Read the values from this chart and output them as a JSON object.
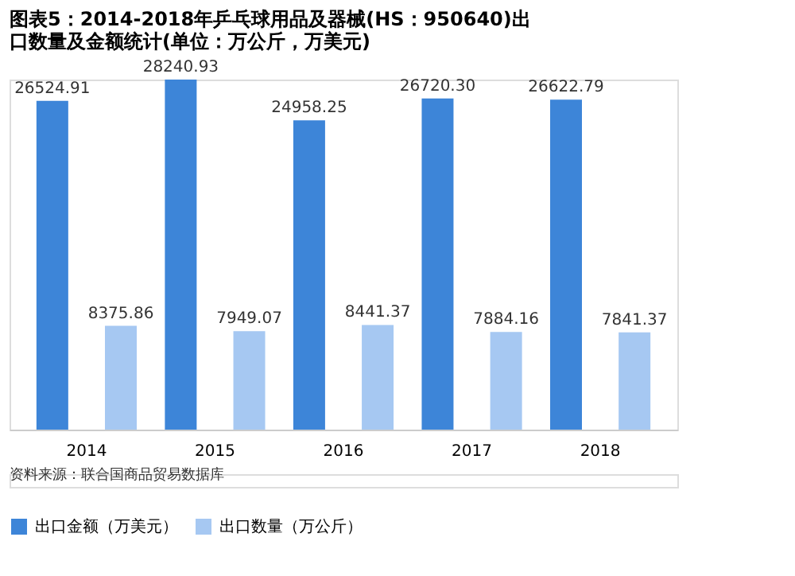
{
  "chart_data": {
    "type": "bar",
    "title": "图表5：2014-2018年乒乓球用品及器械(HS：950640)出口数量及金额统计(单位：万公斤，万美元)",
    "categories": [
      "2014",
      "2015",
      "2016",
      "2017",
      "2018"
    ],
    "series": [
      {
        "name": "出口金额（万美元）",
        "color": "#3d85d8",
        "values": [
          26524.91,
          28240.93,
          24958.25,
          26720.3,
          26622.79
        ],
        "value_labels": [
          "26524.91",
          "28240.93",
          "24958.25",
          "26720.30",
          "26622.79"
        ]
      },
      {
        "name": "出口数量（万公斤）",
        "color": "#a6c8f2",
        "values": [
          8375.86,
          7949.07,
          8441.37,
          7884.16,
          7841.37
        ],
        "value_labels": [
          "8375.86",
          "7949.07",
          "8441.37",
          "7884.16",
          "7841.37"
        ]
      }
    ],
    "legend": "bottom",
    "annotations": [
      "资料来源：联合国商品贸易数据库"
    ]
  }
}
